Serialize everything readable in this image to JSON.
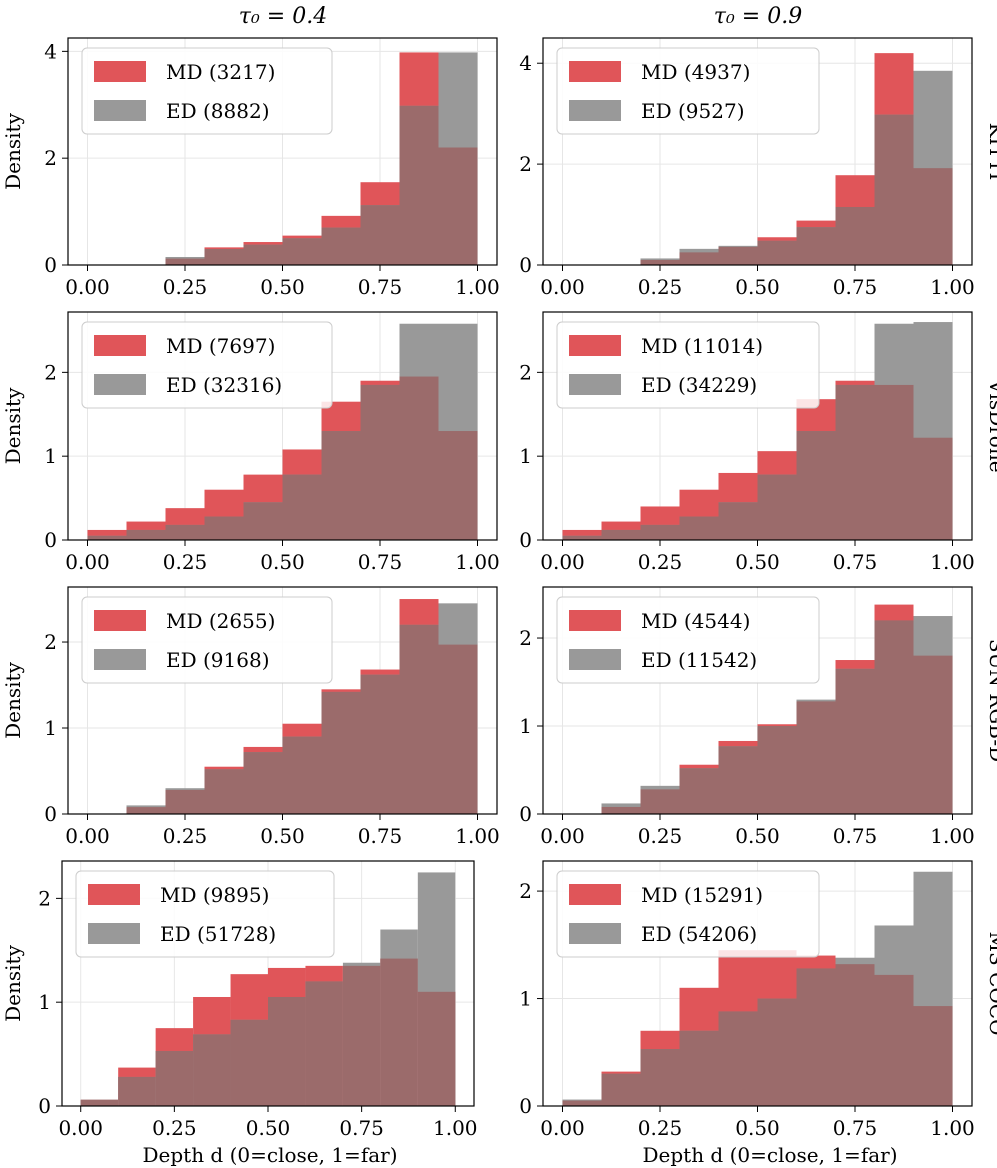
{
  "figure": {
    "col_titles": [
      "τ₀ = 0.4",
      "τ₀ = 0.9"
    ],
    "row_labels": [
      "KITTI",
      "VisDrone",
      "SUN RGB-D",
      "MS COCO"
    ],
    "ylabel": "Density",
    "xlabel": "Depth d (0=close, 1=far)",
    "colors": {
      "md": "#e05559",
      "ed": "#999999",
      "overlap": "#9b6b6b"
    }
  },
  "chart_data": [
    {
      "type": "bar",
      "row": "KITTI",
      "column": "τ₀ = 0.4",
      "bin_edges": [
        0,
        0.1,
        0.2,
        0.3,
        0.4,
        0.5,
        0.6,
        0.7,
        0.8,
        0.9,
        1.0
      ],
      "series": [
        {
          "name": "MD (3217)",
          "values": [
            0,
            0,
            0.12,
            0.33,
            0.43,
            0.55,
            0.92,
            1.55,
            3.98,
            2.2
          ]
        },
        {
          "name": "ED (8882)",
          "values": [
            0,
            0,
            0.15,
            0.3,
            0.38,
            0.5,
            0.7,
            1.12,
            2.98,
            3.98
          ]
        }
      ],
      "xlim": [
        -0.05,
        1.05
      ],
      "ylim": [
        0,
        4.25
      ],
      "xticks": [
        "0.00",
        "0.25",
        "0.50",
        "0.75",
        "1.00"
      ],
      "yticks": [
        0,
        2,
        4
      ]
    },
    {
      "type": "bar",
      "row": "KITTI",
      "column": "τ₀ = 0.9",
      "bin_edges": [
        0,
        0.1,
        0.2,
        0.3,
        0.4,
        0.5,
        0.6,
        0.7,
        0.8,
        0.9,
        1.0
      ],
      "series": [
        {
          "name": "MD (4937)",
          "values": [
            0,
            0,
            0.1,
            0.25,
            0.36,
            0.55,
            0.88,
            1.78,
            4.2,
            1.92
          ]
        },
        {
          "name": "ED (9527)",
          "values": [
            0,
            0,
            0.13,
            0.32,
            0.38,
            0.48,
            0.75,
            1.15,
            2.98,
            3.85
          ]
        }
      ],
      "xlim": [
        -0.05,
        1.05
      ],
      "ylim": [
        0,
        4.5
      ],
      "xticks": [
        "0.00",
        "0.25",
        "0.50",
        "0.75",
        "1.00"
      ],
      "yticks": [
        0,
        2,
        4
      ]
    },
    {
      "type": "bar",
      "row": "VisDrone",
      "column": "τ₀ = 0.4",
      "bin_edges": [
        0,
        0.1,
        0.2,
        0.3,
        0.4,
        0.5,
        0.6,
        0.7,
        0.8,
        0.9,
        1.0
      ],
      "series": [
        {
          "name": "MD (7697)",
          "values": [
            0.12,
            0.22,
            0.38,
            0.6,
            0.78,
            1.08,
            1.65,
            1.9,
            1.95,
            1.3
          ]
        },
        {
          "name": "ED (32316)",
          "values": [
            0.05,
            0.12,
            0.18,
            0.28,
            0.45,
            0.78,
            1.3,
            1.85,
            2.58,
            2.58
          ]
        }
      ],
      "xlim": [
        -0.05,
        1.05
      ],
      "ylim": [
        0,
        2.72
      ],
      "xticks": [
        "0.00",
        "0.25",
        "0.50",
        "0.75",
        "1.00"
      ],
      "yticks": [
        0,
        1,
        2
      ]
    },
    {
      "type": "bar",
      "row": "VisDrone",
      "column": "τ₀ = 0.9",
      "bin_edges": [
        0,
        0.1,
        0.2,
        0.3,
        0.4,
        0.5,
        0.6,
        0.7,
        0.8,
        0.9,
        1.0
      ],
      "series": [
        {
          "name": "MD (11014)",
          "values": [
            0.12,
            0.22,
            0.4,
            0.6,
            0.8,
            1.06,
            1.68,
            1.9,
            1.85,
            1.22
          ]
        },
        {
          "name": "ED (34229)",
          "values": [
            0.05,
            0.12,
            0.18,
            0.28,
            0.45,
            0.78,
            1.3,
            1.85,
            2.58,
            2.6
          ]
        }
      ],
      "xlim": [
        -0.05,
        1.05
      ],
      "ylim": [
        0,
        2.72
      ],
      "xticks": [
        "0.00",
        "0.25",
        "0.50",
        "0.75",
        "1.00"
      ],
      "yticks": [
        0,
        1,
        2
      ]
    },
    {
      "type": "bar",
      "row": "SUN RGB-D",
      "column": "τ₀ = 0.4",
      "bin_edges": [
        0,
        0.1,
        0.2,
        0.3,
        0.4,
        0.5,
        0.6,
        0.7,
        0.8,
        0.9,
        1.0
      ],
      "series": [
        {
          "name": "MD (2655)",
          "values": [
            0,
            0.08,
            0.28,
            0.55,
            0.78,
            1.05,
            1.45,
            1.68,
            2.5,
            1.97
          ]
        },
        {
          "name": "ED (9168)",
          "values": [
            0,
            0.1,
            0.3,
            0.52,
            0.72,
            0.9,
            1.42,
            1.62,
            2.2,
            2.45
          ]
        }
      ],
      "xlim": [
        -0.05,
        1.05
      ],
      "ylim": [
        0,
        2.64
      ],
      "xticks": [
        "0.00",
        "0.25",
        "0.50",
        "0.75",
        "1.00"
      ],
      "yticks": [
        0,
        1,
        2
      ]
    },
    {
      "type": "bar",
      "row": "SUN RGB-D",
      "column": "τ₀ = 0.9",
      "bin_edges": [
        0,
        0.1,
        0.2,
        0.3,
        0.4,
        0.5,
        0.6,
        0.7,
        0.8,
        0.9,
        1.0
      ],
      "series": [
        {
          "name": "MD (4544)",
          "values": [
            0,
            0.08,
            0.28,
            0.56,
            0.83,
            1.02,
            1.28,
            1.75,
            2.38,
            1.8
          ]
        },
        {
          "name": "ED (11542)",
          "values": [
            0,
            0.12,
            0.32,
            0.52,
            0.77,
            1,
            1.3,
            1.65,
            2.2,
            2.25
          ]
        }
      ],
      "xlim": [
        -0.05,
        1.05
      ],
      "ylim": [
        0,
        2.58
      ],
      "xticks": [
        "0.00",
        "0.25",
        "0.50",
        "0.75",
        "1.00"
      ],
      "yticks": [
        0,
        1,
        2
      ]
    },
    {
      "type": "bar",
      "row": "MS COCO",
      "column": "τ₀ = 0.4",
      "bin_edges": [
        0,
        0.1,
        0.2,
        0.3,
        0.4,
        0.5,
        0.6,
        0.7,
        0.8,
        0.9,
        1.0
      ],
      "series": [
        {
          "name": "MD (9895)",
          "values": [
            0.06,
            0.37,
            0.75,
            1.05,
            1.27,
            1.33,
            1.35,
            1.35,
            1.42,
            1.1
          ]
        },
        {
          "name": "ED (51728)",
          "values": [
            0.06,
            0.28,
            0.53,
            0.69,
            0.83,
            1.05,
            1.2,
            1.38,
            1.7,
            2.25
          ]
        }
      ],
      "xlim": [
        -0.05,
        1.05
      ],
      "ylim": [
        0,
        2.36
      ],
      "xticks": [
        "0.00",
        "0.25",
        "0.50",
        "0.75",
        "1.00"
      ],
      "yticks": [
        0,
        1,
        2
      ]
    },
    {
      "type": "bar",
      "row": "MS COCO",
      "column": "τ₀ = 0.9",
      "bin_edges": [
        0,
        0.1,
        0.2,
        0.3,
        0.4,
        0.5,
        0.6,
        0.7,
        0.8,
        0.9,
        1.0
      ],
      "series": [
        {
          "name": "MD (15291)",
          "values": [
            0.05,
            0.32,
            0.7,
            1.1,
            1.45,
            1.45,
            1.4,
            1.32,
            1.22,
            0.93
          ]
        },
        {
          "name": "ED (54206)",
          "values": [
            0.06,
            0.3,
            0.53,
            0.7,
            0.88,
            1.0,
            1.28,
            1.38,
            1.68,
            2.18
          ]
        }
      ],
      "xlim": [
        -0.05,
        1.05
      ],
      "ylim": [
        0,
        2.28
      ],
      "xticks": [
        "0.00",
        "0.25",
        "0.50",
        "0.75",
        "1.00"
      ],
      "yticks": [
        0,
        1,
        2
      ]
    }
  ]
}
